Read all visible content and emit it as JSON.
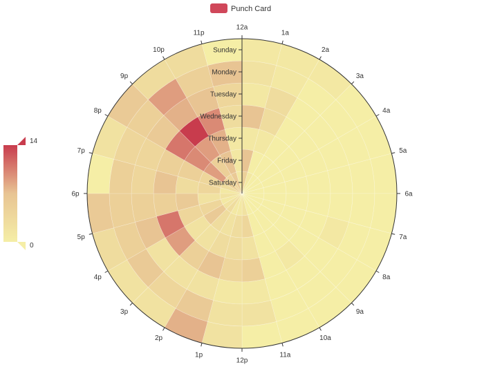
{
  "chart_data": {
    "type": "heatmap",
    "legend": {
      "label": "Punch Card",
      "position": "top-center",
      "color": "#d0475a"
    },
    "hours": [
      "12a",
      "1a",
      "2a",
      "3a",
      "4a",
      "5a",
      "6a",
      "7a",
      "8a",
      "9a",
      "10a",
      "11a",
      "12p",
      "1p",
      "2p",
      "3p",
      "4p",
      "5p",
      "6p",
      "7p",
      "8p",
      "9p",
      "10p",
      "11p"
    ],
    "days": [
      "Saturday",
      "Friday",
      "Thursday",
      "Wednesday",
      "Tuesday",
      "Monday",
      "Sunday"
    ],
    "days_top_to_bottom": [
      "Sunday",
      "Monday",
      "Tuesday",
      "Wednesday",
      "Thursday",
      "Friday",
      "Saturday"
    ],
    "visual_map": {
      "min": 0,
      "max": 14,
      "min_label": "0",
      "max_label": "14",
      "colors": [
        "#f5eea6",
        "#e8c493",
        "#c83c4d"
      ]
    },
    "values": [
      [
        5,
        1,
        0,
        0,
        0,
        0,
        0,
        0,
        0,
        0,
        0,
        2,
        1,
        1,
        3,
        2,
        1,
        2,
        1,
        3,
        5,
        4,
        6,
        1
      ],
      [
        7,
        0,
        0,
        0,
        0,
        0,
        0,
        0,
        0,
        0,
        0,
        4,
        3,
        2,
        3,
        6,
        4,
        2,
        4,
        4,
        9,
        5,
        7,
        1
      ],
      [
        1,
        1,
        0,
        0,
        0,
        0,
        0,
        0,
        0,
        0,
        0,
        2,
        3,
        3,
        2,
        2,
        4,
        6,
        3,
        5,
        10,
        9,
        8,
        1
      ],
      [
        7,
        3,
        0,
        0,
        0,
        0,
        0,
        0,
        0,
        1,
        0,
        5,
        4,
        7,
        5,
        9,
        11,
        5,
        7,
        5,
        11,
        14,
        10,
        3
      ],
      [
        1,
        3,
        0,
        0,
        0,
        0,
        0,
        1,
        0,
        0,
        0,
        1,
        1,
        2,
        2,
        2,
        7,
        5,
        4,
        4,
        6,
        8,
        7,
        4
      ],
      [
        2,
        1,
        0,
        0,
        0,
        0,
        0,
        0,
        0,
        0,
        0,
        2,
        2,
        6,
        4,
        6,
        5,
        5,
        5,
        4,
        5,
        9,
        5,
        7
      ],
      [
        1,
        1,
        1,
        0,
        0,
        0,
        0,
        0,
        0,
        0,
        0,
        0,
        2,
        8,
        2,
        2,
        3,
        6,
        0,
        2,
        6,
        3,
        3,
        0
      ]
    ]
  }
}
